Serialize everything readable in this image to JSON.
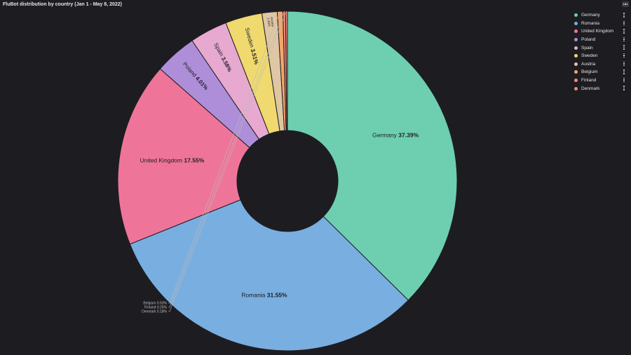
{
  "title": "FluBot distribution by country (Jan 1 - May 8, 2022)",
  "menu_icon": "more-horizontal-icon",
  "legend_kebab_icon": "more-vertical-icon",
  "chart_data": {
    "type": "pie",
    "donut": true,
    "legend_position": "top-right",
    "slices": [
      {
        "name": "Germany",
        "value": 37.39,
        "label": "37.39%",
        "color": "#6dcfb0"
      },
      {
        "name": "Romania",
        "value": 31.55,
        "label": "31.55%",
        "color": "#79aee0"
      },
      {
        "name": "United Kingdom",
        "value": 17.55,
        "label": "17.55%",
        "color": "#ee7599"
      },
      {
        "name": "Poland",
        "value": 4.01,
        "label": "4.01%",
        "color": "#ae8ed9"
      },
      {
        "name": "Spain",
        "value": 3.58,
        "label": "3.58%",
        "color": "#e7a9d0"
      },
      {
        "name": "Sweden",
        "value": 3.51,
        "label": "3.51%",
        "color": "#f0d96f"
      },
      {
        "name": "Austria",
        "value": 1.45,
        "label": "1.45%",
        "color": "#dfc6a4"
      },
      {
        "name": "Belgium",
        "value": 0.53,
        "label": "0.53%",
        "color": "#f5a66a"
      },
      {
        "name": "Finland",
        "value": 0.25,
        "label": "0.25%",
        "color": "#f08a7a"
      },
      {
        "name": "Denmark",
        "value": 0.18,
        "label": "0.18%",
        "color": "#f08a7a"
      }
    ]
  }
}
